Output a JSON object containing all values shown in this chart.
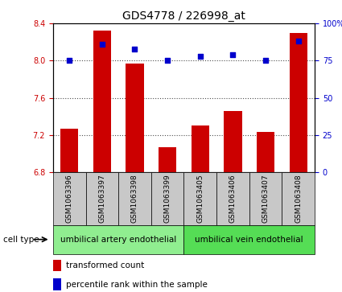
{
  "title": "GDS4778 / 226998_at",
  "samples": [
    "GSM1063396",
    "GSM1063397",
    "GSM1063398",
    "GSM1063399",
    "GSM1063405",
    "GSM1063406",
    "GSM1063407",
    "GSM1063408"
  ],
  "transformed_count": [
    7.27,
    8.32,
    7.97,
    7.07,
    7.3,
    7.46,
    7.23,
    8.3
  ],
  "percentile_rank": [
    75,
    86,
    83,
    75,
    78,
    79,
    75,
    88
  ],
  "ylim_left": [
    6.8,
    8.4
  ],
  "ylim_right": [
    0,
    100
  ],
  "yticks_left": [
    6.8,
    7.2,
    7.6,
    8.0,
    8.4
  ],
  "ytick_labels_right": [
    "0",
    "25",
    "50",
    "75",
    "100%"
  ],
  "bar_color": "#cc0000",
  "dot_color": "#0000cc",
  "bar_bottom": 6.8,
  "cell_type_artery": "umbilical artery endothelial",
  "cell_type_vein": "umbilical vein endothelial",
  "cell_type_artery_color": "#90ee90",
  "cell_type_vein_color": "#55dd55",
  "cell_type_label": "cell type",
  "legend_bar_label": "transformed count",
  "legend_dot_label": "percentile rank within the sample",
  "tick_color_left": "#cc0000",
  "tick_color_right": "#0000cc",
  "gridline_yticks": [
    7.2,
    7.6,
    8.0
  ],
  "title_fontsize": 10,
  "tick_fontsize": 7,
  "label_fontsize": 7.5,
  "sample_label_fontsize": 6.5
}
